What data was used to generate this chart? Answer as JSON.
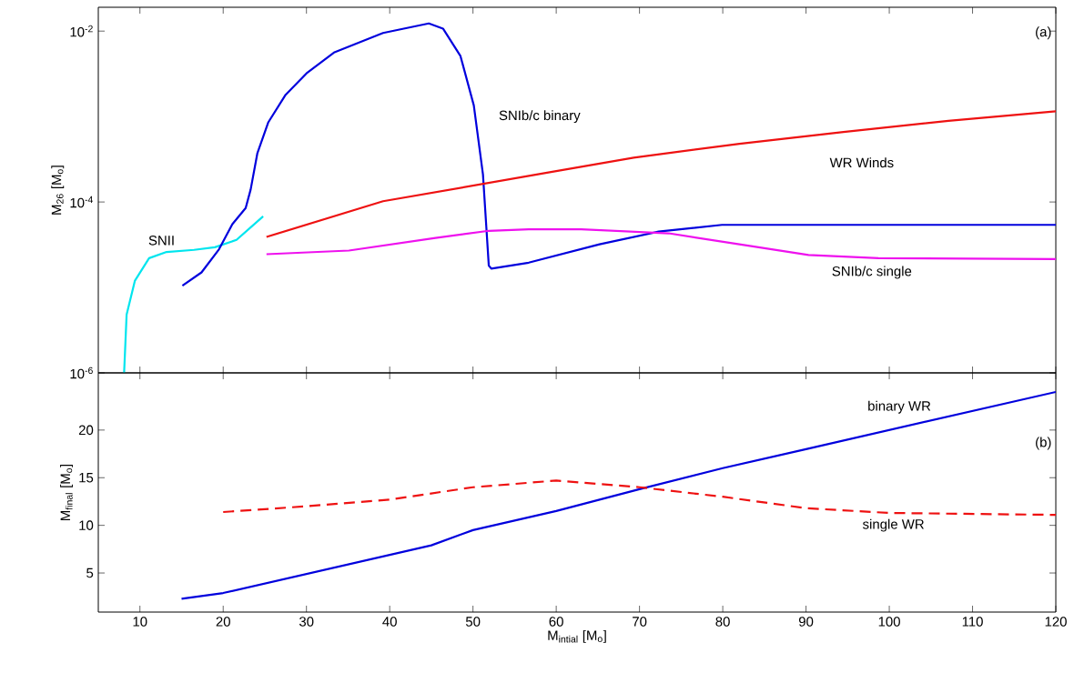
{
  "chart_data": [
    {
      "type": "line",
      "ylabel": "M$_{26}$  [M$_{o}$]",
      "log": "y",
      "tick_labels": "y",
      "xlim": [
        5,
        120
      ],
      "xticks": [
        10,
        20,
        30,
        40,
        50,
        60,
        70,
        80,
        90,
        100,
        110,
        120
      ],
      "ylim": [
        1e-06,
        0.019
      ],
      "yticks": [
        {
          "value": 1e-06,
          "label": "10$^{-6}$"
        },
        {
          "value": 0.0001,
          "label": "10$^{-4}$"
        },
        {
          "value": 0.01,
          "label": "10$^{-2}$"
        }
      ],
      "annotations": [
        "(a)"
      ],
      "series": [
        {
          "name": "SNII",
          "color": "#00e5ee",
          "x": [
            8.1,
            8.4,
            9.4,
            11.1,
            13.2,
            16.5,
            19,
            21.6,
            24.8
          ],
          "values": [
            1e-06,
            4.8e-06,
            1.2e-05,
            2.2e-05,
            2.6e-05,
            2.75e-05,
            2.95e-05,
            3.6e-05,
            6.8e-05
          ]
        },
        {
          "name": "SNIb/c binary",
          "color": "#0000dd",
          "x": [
            15.1,
            17.4,
            19.5,
            21.1,
            22.7,
            23.3,
            24.1,
            25.4,
            27.5,
            30,
            33.3,
            39.2,
            44.7,
            46.4,
            48.5,
            50.1,
            51.2,
            51.9,
            52.2,
            56.7,
            65.2,
            72.3,
            79.9,
            120
          ],
          "values": [
            1.05e-05,
            1.5e-05,
            2.8e-05,
            5.5e-05,
            8.5e-05,
            0.00014,
            0.00037,
            0.00085,
            0.0018,
            0.0032,
            0.0056,
            0.0095,
            0.0123,
            0.0107,
            0.0051,
            0.00135,
            0.00021,
            1.8e-05,
            1.66e-05,
            1.95e-05,
            3.2e-05,
            4.5e-05,
            5.4e-05,
            5.4e-05
          ]
        },
        {
          "name": "WR Winds",
          "color": "#ee1111",
          "x": [
            25.2,
            39.2,
            58.9,
            69.3,
            82,
            94.5,
            107.1,
            120
          ],
          "values": [
            3.9e-05,
            0.000102,
            0.00022,
            0.00033,
            0.00048,
            0.00066,
            0.00089,
            0.00115
          ]
        },
        {
          "name": "SNIb/c single",
          "color": "#ee11ee",
          "x": [
            25.2,
            35.1,
            45.5,
            51.9,
            56.7,
            63,
            73.5,
            82,
            90.3,
            98.7,
            120
          ],
          "values": [
            2.45e-05,
            2.7e-05,
            3.8e-05,
            4.6e-05,
            4.8e-05,
            4.8e-05,
            4.3e-05,
            3.2e-05,
            2.4e-05,
            2.2e-05,
            2.15e-05
          ]
        }
      ]
    },
    {
      "type": "line",
      "xlabel": "M$_{intial}$ [M$_{o}$]",
      "ylabel": "M$_{final}$  [M$_{o}$]",
      "xlim": [
        5,
        120
      ],
      "xticks": [
        10,
        20,
        30,
        40,
        50,
        60,
        70,
        80,
        90,
        100,
        110,
        120
      ],
      "ylim": [
        0.9,
        26
      ],
      "yticks": [
        5,
        10,
        15,
        20
      ],
      "annotations": [
        "(b)"
      ],
      "series": [
        {
          "name": "binary WR",
          "color": "#0000dd",
          "line_style": "solid",
          "x": [
            15,
            20,
            45,
            50,
            60,
            70,
            80,
            90,
            100,
            110,
            120
          ],
          "values": [
            2.3,
            2.9,
            7.9,
            9.5,
            11.5,
            13.8,
            16,
            18,
            20,
            22,
            24
          ]
        },
        {
          "name": "single WR",
          "color": "#ee1111",
          "line_style": "dashed",
          "x": [
            20,
            30,
            40,
            50,
            60,
            70,
            80,
            90,
            100,
            120
          ],
          "values": [
            11.4,
            12,
            12.7,
            14,
            14.7,
            14,
            13,
            11.8,
            11.3,
            11.1
          ]
        }
      ]
    }
  ]
}
